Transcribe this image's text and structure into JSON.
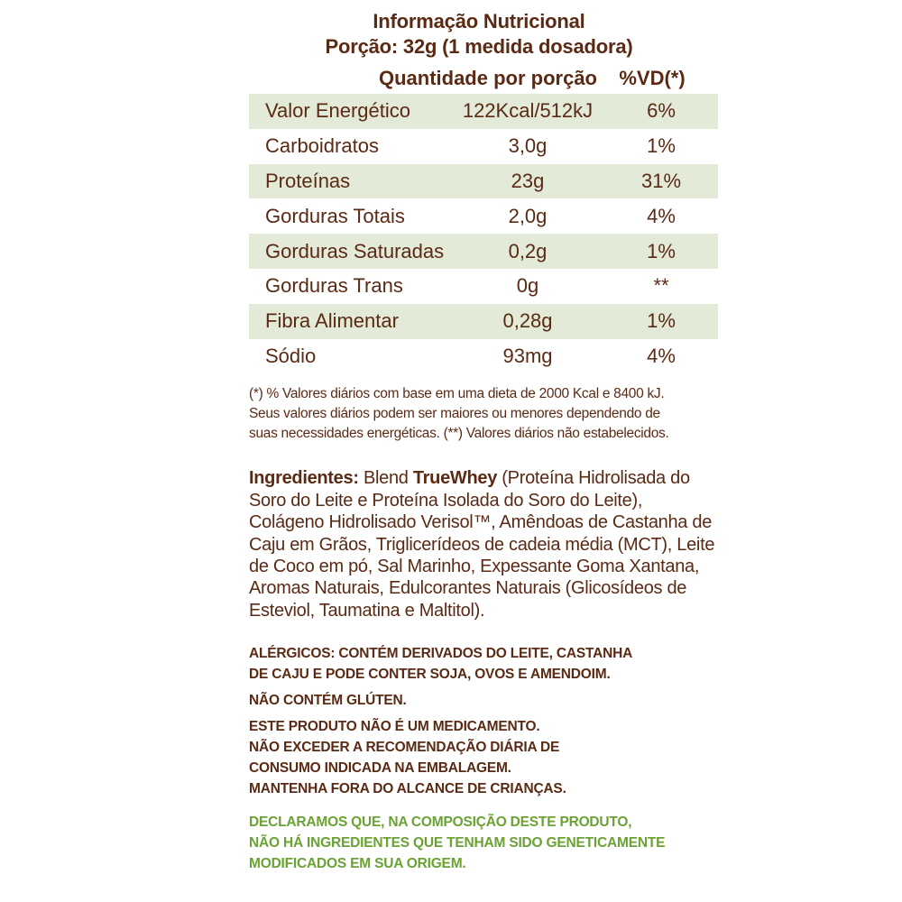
{
  "header": {
    "title": "Informação Nutricional",
    "portion": "Porção: 32g (1 medida dosadora)",
    "col_quantity": "Quantidade por porção",
    "col_vd": "%VD(*)"
  },
  "nutrition": [
    {
      "name": "Valor Energético",
      "qty": "122Kcal/512kJ",
      "vd": "6%"
    },
    {
      "name": "Carboidratos",
      "qty": "3,0g",
      "vd": "1%"
    },
    {
      "name": "Proteínas",
      "qty": "23g",
      "vd": "31%"
    },
    {
      "name": "Gorduras Totais",
      "qty": "2,0g",
      "vd": "4%"
    },
    {
      "name": "Gorduras Saturadas",
      "qty": "0,2g",
      "vd": "1%"
    },
    {
      "name": "Gorduras Trans",
      "qty": "0g",
      "vd": "**"
    },
    {
      "name": "Fibra Alimentar",
      "qty": "0,28g",
      "vd": "1%"
    },
    {
      "name": "Sódio",
      "qty": "93mg",
      "vd": "4%"
    }
  ],
  "footnote": {
    "line1": "(*) % Valores diários com base em uma dieta de 2000 Kcal e 8400 kJ.",
    "line2": "Seus valores diários podem ser maiores ou menores dependendo de",
    "line3": "suas necessidades energéticas. (**) Valores diários não estabelecidos."
  },
  "ingredients": {
    "label": "Ingredientes:",
    "blend_prefix": " Blend ",
    "brand": "TrueWhey",
    "text": " (Proteína Hidrolisada do Soro do Leite e Proteína Isolada do Soro do Leite), Colágeno Hidrolisado Verisol™, Amêndoas de Castanha de Caju em Grãos, Triglicerídeos de cadeia média (MCT), Leite de Coco em pó, Sal Marinho, Expessante Goma Xantana, Aromas Naturais, Edulcorantes Naturais (Glicosídeos de Esteviol, Taumatina e Maltitol)."
  },
  "warnings": {
    "allergens_line1": "ALÉRGICOS: CONTÉM DERIVADOS DO LEITE, CASTANHA",
    "allergens_line2": "DE CAJU E PODE CONTER SOJA, OVOS E AMENDOIM.",
    "gluten": "NÃO CONTÉM GLÚTEN.",
    "medicine_line1": "ESTE PRODUTO NÃO É UM MEDICAMENTO.",
    "medicine_line2": "NÃO EXCEDER A RECOMENDAÇÃO DIÁRIA DE",
    "medicine_line3": "CONSUMO INDICADA NA EMBALAGEM.",
    "medicine_line4": "MANTENHA FORA DO ALCANCE DE CRIANÇAS."
  },
  "gmo": {
    "line1": "DECLARAMOS QUE, NA COMPOSIÇÃO DESTE PRODUTO,",
    "line2": "NÃO HÁ INGREDIENTES QUE TENHAM SIDO GENETICAMENTE",
    "line3": "MODIFICADOS EM SUA ORIGEM."
  },
  "colors": {
    "text_brown": "#5a2a14",
    "row_shade": "#e3ead8",
    "gmo_green": "#6aa234"
  }
}
